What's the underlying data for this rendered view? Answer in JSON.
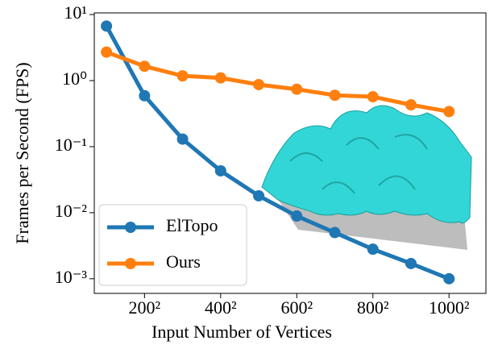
{
  "chart_data": {
    "type": "line",
    "xlabel": "Input Number of Vertices",
    "ylabel": "Frames per Second (FPS)",
    "x": [
      100,
      200,
      300,
      400,
      500,
      600,
      700,
      800,
      900,
      1000
    ],
    "series": [
      {
        "name": "ElTopo",
        "color": "#1f77b4",
        "values": [
          6.7,
          0.59,
          0.13,
          0.043,
          0.018,
          0.0089,
          0.005,
          0.0028,
          0.0017,
          0.001
        ]
      },
      {
        "name": "Ours",
        "color": "#ff7f0e",
        "values": [
          2.7,
          1.65,
          1.18,
          1.1,
          0.87,
          0.74,
          0.6,
          0.57,
          0.43,
          0.34
        ]
      }
    ],
    "xlim": [
      68,
      1097
    ],
    "xticks": [
      {
        "value": 200,
        "label": "200²"
      },
      {
        "value": 400,
        "label": "400²"
      },
      {
        "value": 600,
        "label": "600²"
      },
      {
        "value": 800,
        "label": "800²"
      },
      {
        "value": 1000,
        "label": "1000²"
      }
    ],
    "yscale": "log",
    "ylim": [
      0.0006,
      10.6
    ],
    "yticks": [
      {
        "value": 0.001,
        "label": "10⁻³"
      },
      {
        "value": 0.01,
        "label": "10⁻²"
      },
      {
        "value": 0.1,
        "label": "10⁻¹"
      },
      {
        "value": 1,
        "label": "10⁰"
      },
      {
        "value": 10,
        "label": "10¹"
      }
    ],
    "legend": "lower left"
  }
}
